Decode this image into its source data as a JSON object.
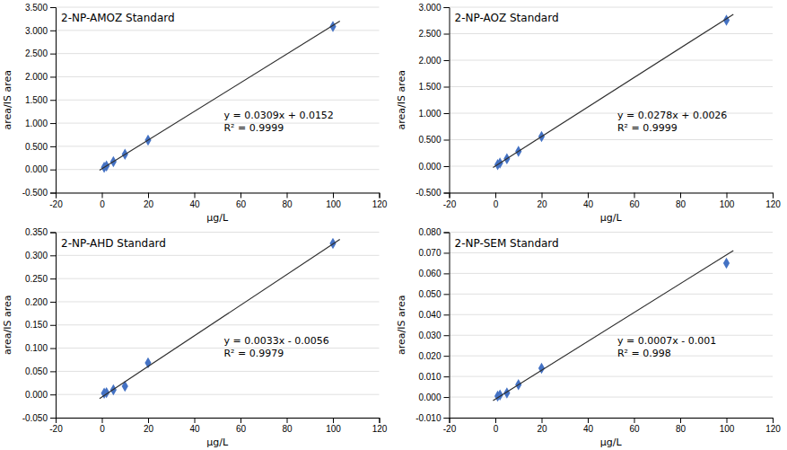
{
  "chart_data": [
    {
      "type": "scatter",
      "title": "2-NP-AMOZ Standard",
      "x_label": "μg/L",
      "y_label": "area/IS area",
      "xlim": [
        -20,
        120
      ],
      "xticks": [
        -20,
        0,
        20,
        40,
        60,
        80,
        100,
        120
      ],
      "ylim": [
        -0.5,
        3.5
      ],
      "yticks": [
        {
          "value": -0.5,
          "label": "-0.500"
        },
        {
          "value": 0.0,
          "label": "0.000"
        },
        {
          "value": 0.5,
          "label": "0.500"
        },
        {
          "value": 1.0,
          "label": "1.000"
        },
        {
          "value": 1.5,
          "label": "1.500"
        },
        {
          "value": 2.0,
          "label": "2.000"
        },
        {
          "value": 2.5,
          "label": "2.500"
        },
        {
          "value": 3.0,
          "label": "3.000"
        },
        {
          "value": 3.5,
          "label": "3.500"
        }
      ],
      "grid": true,
      "series": [
        {
          "type": "scatter",
          "marker": "diamond",
          "color": "#4472C4",
          "x": [
            1,
            2,
            5,
            10,
            20,
            100
          ],
          "values": [
            0.047,
            0.077,
            0.17,
            0.326,
            0.634,
            3.082
          ]
        },
        {
          "type": "line",
          "color": "#2F2F2F",
          "x": [
            -1,
            103
          ],
          "values": [
            -0.0157,
            3.1979
          ]
        }
      ],
      "annotations": [
        "y = 0.0309x + 0.0152",
        "R² = 0.9999"
      ]
    },
    {
      "type": "scatter",
      "title": "2-NP-AOZ Standard",
      "x_label": "μg/L",
      "y_label": "area/IS area",
      "xlim": [
        -20,
        120
      ],
      "xticks": [
        -20,
        0,
        20,
        40,
        60,
        80,
        100,
        120
      ],
      "ylim": [
        -0.5,
        3.0
      ],
      "yticks": [
        {
          "value": -0.5,
          "label": "-0.500"
        },
        {
          "value": 0.0,
          "label": "0.000"
        },
        {
          "value": 0.5,
          "label": "0.500"
        },
        {
          "value": 1.0,
          "label": "1.000"
        },
        {
          "value": 1.5,
          "label": "1.500"
        },
        {
          "value": 2.0,
          "label": "2.000"
        },
        {
          "value": 2.5,
          "label": "2.500"
        },
        {
          "value": 3.0,
          "label": "3.000"
        }
      ],
      "grid": true,
      "series": [
        {
          "type": "scatter",
          "marker": "diamond",
          "color": "#4472C4",
          "x": [
            1,
            2,
            5,
            10,
            20,
            100
          ],
          "values": [
            0.03,
            0.058,
            0.141,
            0.281,
            0.558,
            2.756
          ]
        },
        {
          "type": "line",
          "color": "#2F2F2F",
          "x": [
            -1,
            103
          ],
          "values": [
            -0.0252,
            2.866
          ]
        }
      ],
      "annotations": [
        "y = 0.0278x + 0.0026",
        "R² = 0.9999"
      ]
    },
    {
      "type": "scatter",
      "title": "2-NP-AHD Standard",
      "x_label": "μg/L",
      "y_label": "area/IS area",
      "xlim": [
        -20,
        120
      ],
      "xticks": [
        -20,
        0,
        20,
        40,
        60,
        80,
        100,
        120
      ],
      "ylim": [
        -0.05,
        0.35
      ],
      "yticks": [
        {
          "value": -0.05,
          "label": "-0.050"
        },
        {
          "value": 0.0,
          "label": "0.000"
        },
        {
          "value": 0.05,
          "label": "0.050"
        },
        {
          "value": 0.1,
          "label": "0.100"
        },
        {
          "value": 0.15,
          "label": "0.150"
        },
        {
          "value": 0.2,
          "label": "0.200"
        },
        {
          "value": 0.25,
          "label": "0.250"
        },
        {
          "value": 0.3,
          "label": "0.300"
        },
        {
          "value": 0.35,
          "label": "0.350"
        }
      ],
      "grid": true,
      "series": [
        {
          "type": "scatter",
          "marker": "diamond",
          "color": "#4472C4",
          "x": [
            1,
            2,
            5,
            10,
            20,
            100
          ],
          "values": [
            0.003,
            0.004,
            0.01,
            0.018,
            0.068,
            0.326
          ]
        },
        {
          "type": "line",
          "color": "#2F2F2F",
          "x": [
            -1,
            103
          ],
          "values": [
            -0.0089,
            0.3343
          ]
        }
      ],
      "annotations": [
        "y = 0.0033x - 0.0056",
        "R² = 0.9979"
      ]
    },
    {
      "type": "scatter",
      "title": "2-NP-SEM Standard",
      "x_label": "μg/L",
      "y_label": "area/IS area",
      "xlim": [
        -20,
        120
      ],
      "xticks": [
        -20,
        0,
        20,
        40,
        60,
        80,
        100,
        120
      ],
      "ylim": [
        -0.01,
        0.08
      ],
      "yticks": [
        {
          "value": -0.01,
          "label": "-0.010"
        },
        {
          "value": 0.0,
          "label": "0.000"
        },
        {
          "value": 0.01,
          "label": "0.010"
        },
        {
          "value": 0.02,
          "label": "0.020"
        },
        {
          "value": 0.03,
          "label": "0.030"
        },
        {
          "value": 0.04,
          "label": "0.040"
        },
        {
          "value": 0.05,
          "label": "0.050"
        },
        {
          "value": 0.06,
          "label": "0.060"
        },
        {
          "value": 0.07,
          "label": "0.070"
        },
        {
          "value": 0.08,
          "label": "0.080"
        }
      ],
      "grid": true,
      "series": [
        {
          "type": "scatter",
          "marker": "diamond",
          "color": "#4472C4",
          "x": [
            1,
            2,
            5,
            10,
            20,
            100
          ],
          "values": [
            0.0005,
            0.001,
            0.002,
            0.006,
            0.014,
            0.065
          ]
        },
        {
          "type": "line",
          "color": "#2F2F2F",
          "x": [
            -1,
            103
          ],
          "values": [
            -0.0017,
            0.0711
          ]
        }
      ],
      "annotations": [
        "y = 0.0007x - 0.001",
        "R² = 0.998"
      ]
    }
  ]
}
